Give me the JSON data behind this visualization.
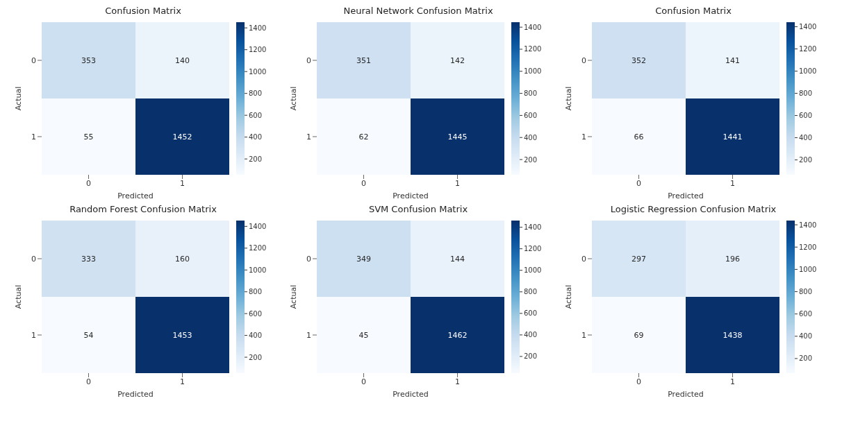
{
  "chart_data": [
    {
      "type": "heatmap",
      "title": "Confusion Matrix",
      "xlabel": "Predicted",
      "ylabel": "Actual",
      "categories": [
        "0",
        "1"
      ],
      "y_categories": [
        "0",
        "1"
      ],
      "cells": [
        [
          353,
          140
        ],
        [
          55,
          1452
        ]
      ],
      "clim": [
        55,
        1452
      ],
      "cticks": [
        200,
        400,
        600,
        800,
        1000,
        1200,
        1400
      ],
      "data_labels": true
    },
    {
      "type": "heatmap",
      "title": "Neural Network Confusion Matrix",
      "xlabel": "Predicted",
      "ylabel": "Actual",
      "categories": [
        "0",
        "1"
      ],
      "y_categories": [
        "0",
        "1"
      ],
      "cells": [
        [
          351,
          142
        ],
        [
          62,
          1445
        ]
      ],
      "clim": [
        62,
        1445
      ],
      "cticks": [
        200,
        400,
        600,
        800,
        1000,
        1200,
        1400
      ],
      "data_labels": true
    },
    {
      "type": "heatmap",
      "title": "Confusion Matrix",
      "xlabel": "Predicted",
      "ylabel": "Actual",
      "categories": [
        "0",
        "1"
      ],
      "y_categories": [
        "0",
        "1"
      ],
      "cells": [
        [
          352,
          141
        ],
        [
          66,
          1441
        ]
      ],
      "clim": [
        66,
        1441
      ],
      "cticks": [
        200,
        400,
        600,
        800,
        1000,
        1200,
        1400
      ],
      "data_labels": true
    },
    {
      "type": "heatmap",
      "title": "Random Forest Confusion Matrix",
      "xlabel": "Predicted",
      "ylabel": "Actual",
      "categories": [
        "0",
        "1"
      ],
      "y_categories": [
        "0",
        "1"
      ],
      "cells": [
        [
          333,
          160
        ],
        [
          54,
          1453
        ]
      ],
      "clim": [
        54,
        1453
      ],
      "cticks": [
        200,
        400,
        600,
        800,
        1000,
        1200,
        1400
      ],
      "data_labels": true
    },
    {
      "type": "heatmap",
      "title": "SVM Confusion Matrix",
      "xlabel": "Predicted",
      "ylabel": "Actual",
      "categories": [
        "0",
        "1"
      ],
      "y_categories": [
        "0",
        "1"
      ],
      "cells": [
        [
          349,
          144
        ],
        [
          45,
          1462
        ]
      ],
      "clim": [
        45,
        1462
      ],
      "cticks": [
        200,
        400,
        600,
        800,
        1000,
        1200,
        1400
      ],
      "data_labels": true
    },
    {
      "type": "heatmap",
      "title": "Logistic Regression Confusion Matrix",
      "xlabel": "Predicted",
      "ylabel": "Actual",
      "categories": [
        "0",
        "1"
      ],
      "y_categories": [
        "0",
        "1"
      ],
      "cells": [
        [
          297,
          196
        ],
        [
          69,
          1438
        ]
      ],
      "clim": [
        69,
        1438
      ],
      "cticks": [
        200,
        400,
        600,
        800,
        1000,
        1200,
        1400
      ],
      "data_labels": true
    }
  ]
}
